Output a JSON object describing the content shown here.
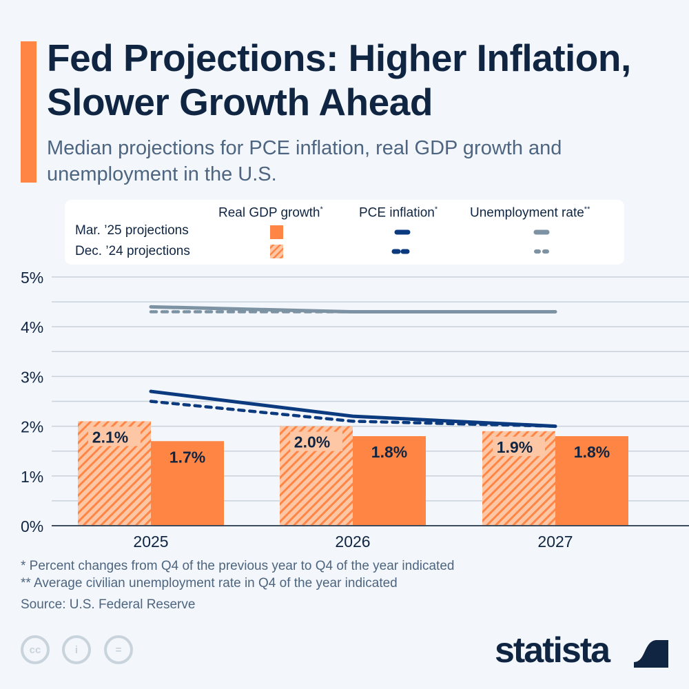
{
  "header": {
    "title": "Fed Projections: Higher Inflation, Slower Growth Ahead",
    "subtitle": "Median projections for PCE inflation, real GDP growth and unemployment in the U.S.",
    "accent_color": "#ff8545"
  },
  "legend": {
    "columns": [
      {
        "label": "Real GDP growth",
        "mark": "*"
      },
      {
        "label": "PCE inflation",
        "mark": "*"
      },
      {
        "label": "Unemployment rate",
        "mark": "**"
      }
    ],
    "rows": [
      "Mar. ’25 projections",
      "Dec. ’24 projections"
    ]
  },
  "chart_data": {
    "type": "bar",
    "categories": [
      "2025",
      "2026",
      "2027"
    ],
    "ylim": [
      0,
      5
    ],
    "yticks": [
      "0%",
      "1%",
      "2%",
      "3%",
      "4%",
      "5%"
    ],
    "grid": true,
    "series": [
      {
        "name": "Real GDP growth (Dec. ’24 projections)",
        "kind": "bar",
        "style": "hatched",
        "color": "#ff8545",
        "values": [
          2.1,
          2.0,
          1.9
        ],
        "labels": [
          "2.1%",
          "2.0%",
          "1.9%"
        ]
      },
      {
        "name": "Real GDP growth (Mar. ’25 projections)",
        "kind": "bar",
        "style": "solid",
        "color": "#ff8545",
        "values": [
          1.7,
          1.8,
          1.8
        ],
        "labels": [
          "1.7%",
          "1.8%",
          "1.8%"
        ]
      },
      {
        "name": "PCE inflation (Mar. ’25 projections)",
        "kind": "line",
        "style": "solid",
        "color": "#0b3b7e",
        "values": [
          2.7,
          2.2,
          2.0
        ]
      },
      {
        "name": "PCE inflation (Dec. ’24 projections)",
        "kind": "line",
        "style": "dashed",
        "color": "#0b3b7e",
        "values": [
          2.5,
          2.1,
          2.0
        ]
      },
      {
        "name": "Unemployment rate (Mar. ’25 projections)",
        "kind": "line",
        "style": "solid",
        "color": "#7d93a4",
        "values": [
          4.4,
          4.3,
          4.3
        ]
      },
      {
        "name": "Unemployment rate (Dec. ’24 projections)",
        "kind": "line",
        "style": "dashed",
        "color": "#7d93a4",
        "values": [
          4.3,
          4.3,
          4.3
        ]
      }
    ],
    "legend_position": "top"
  },
  "footer": {
    "note1": "*   Percent changes from Q4 of the previous year to Q4 of the year indicated",
    "note2": "** Average civilian unemployment rate in Q4 of the year indicated",
    "source": "Source: U.S. Federal Reserve",
    "license_icons": [
      "cc-icon",
      "attribution-icon",
      "no-derivatives-icon"
    ],
    "brand": "statista"
  }
}
